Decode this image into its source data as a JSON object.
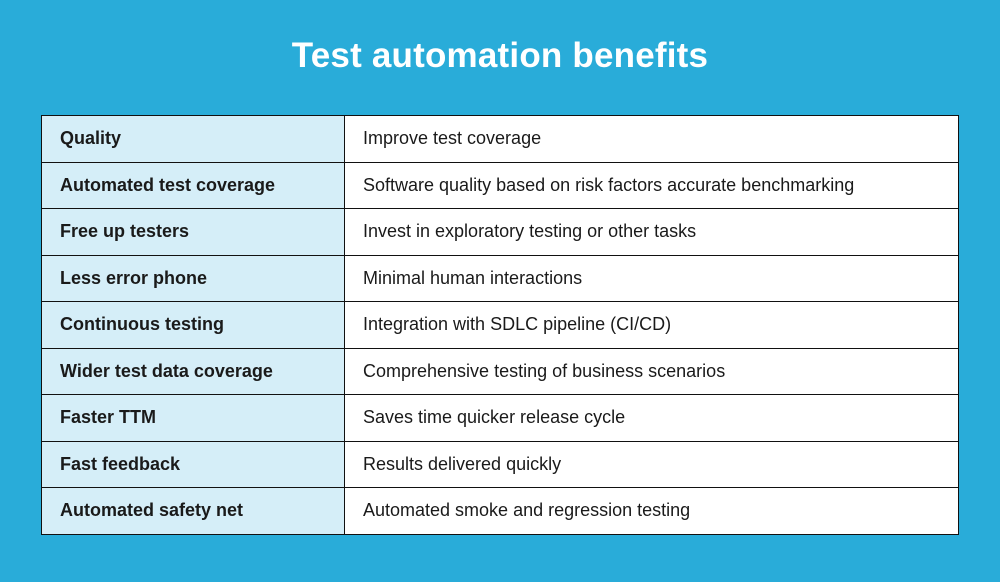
{
  "title": "Test automation benefits",
  "rows": [
    {
      "benefit": "Quality",
      "description": "Improve test coverage"
    },
    {
      "benefit": "Automated test coverage",
      "description": "Software quality based on risk factors accurate benchmarking"
    },
    {
      "benefit": "Free up testers",
      "description": "Invest in exploratory testing or other tasks"
    },
    {
      "benefit": "Less error phone",
      "description": "Minimal human interactions"
    },
    {
      "benefit": "Continuous testing",
      "description": "Integration with SDLC pipeline (CI/CD)"
    },
    {
      "benefit": "Wider test data coverage",
      "description": "Comprehensive testing of business scenarios"
    },
    {
      "benefit": "Faster TTM",
      "description": "Saves time quicker release cycle"
    },
    {
      "benefit": "Fast feedback",
      "description": "Results delivered quickly"
    },
    {
      "benefit": "Automated safety net",
      "description": "Automated smoke and regression testing"
    }
  ],
  "colors": {
    "background": "#29acd9",
    "key_cell": "#d5eef8",
    "value_cell": "#ffffff"
  }
}
